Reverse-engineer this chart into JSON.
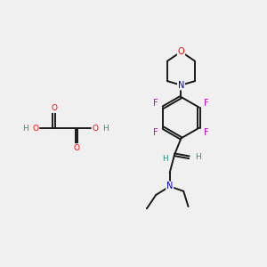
{
  "bg_color": "#f0f0f0",
  "bond_color": "#1a1a1a",
  "atom_colors": {
    "O": "#ff0000",
    "N": "#0000cc",
    "F": "#cc00cc",
    "H": "#2e8b8b",
    "C": "#1a1a1a"
  }
}
